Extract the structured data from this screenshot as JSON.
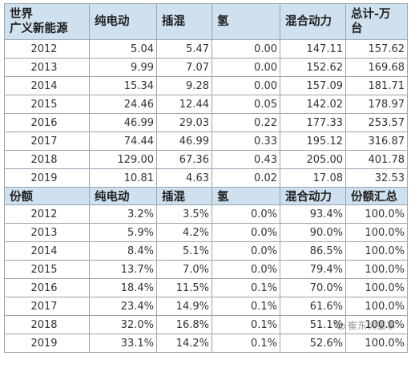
{
  "table1": {
    "headers": [
      "世界\n广义新能源",
      "纯电动",
      "插混",
      "氢",
      "混合动力",
      "总计-万\n台"
    ],
    "rows": [
      [
        "2012",
        "5.04",
        "5.47",
        "0.00",
        "147.11",
        "157.62"
      ],
      [
        "2013",
        "9.99",
        "7.07",
        "0.00",
        "152.62",
        "169.68"
      ],
      [
        "2014",
        "15.34",
        "9.28",
        "0.00",
        "157.09",
        "181.71"
      ],
      [
        "2015",
        "24.46",
        "12.44",
        "0.05",
        "142.02",
        "178.97"
      ],
      [
        "2016",
        "46.99",
        "29.03",
        "0.22",
        "177.33",
        "253.57"
      ],
      [
        "2017",
        "74.44",
        "46.99",
        "0.33",
        "195.12",
        "316.87"
      ],
      [
        "2018",
        "129.00",
        "67.36",
        "0.43",
        "205.00",
        "401.78"
      ],
      [
        "2019",
        "10.81",
        "4.63",
        "0.02",
        "17.08",
        "32.53"
      ]
    ]
  },
  "table2": {
    "headers": [
      "份额",
      "纯电动",
      "插混",
      "氢",
      "混合动力",
      "份额汇总"
    ],
    "rows": [
      [
        "2012",
        "3.2%",
        "3.5%",
        "0.0%",
        "93.4%",
        "100.0%"
      ],
      [
        "2013",
        "5.9%",
        "4.2%",
        "0.0%",
        "90.0%",
        "100.0%"
      ],
      [
        "2014",
        "8.4%",
        "5.1%",
        "0.0%",
        "86.5%",
        "100.0%"
      ],
      [
        "2015",
        "13.7%",
        "7.0%",
        "0.0%",
        "79.4%",
        "100.0%"
      ],
      [
        "2016",
        "18.4%",
        "11.5%",
        "0.1%",
        "70.0%",
        "100.0%"
      ],
      [
        "2017",
        "23.4%",
        "14.9%",
        "0.1%",
        "61.6%",
        "100.0%"
      ],
      [
        "2018",
        "32.0%",
        "16.8%",
        "0.1%",
        "51.1%",
        "100.0%"
      ],
      [
        "2019",
        "33.1%",
        "14.2%",
        "0.1%",
        "52.6%",
        "100.0%"
      ]
    ]
  },
  "watermark": {
    "text": "崔东树董事",
    "icon": "wechat-icon"
  },
  "colors": {
    "header_bg": "#cfe0ef",
    "border": "#9aa4ad",
    "text": "#333333"
  }
}
